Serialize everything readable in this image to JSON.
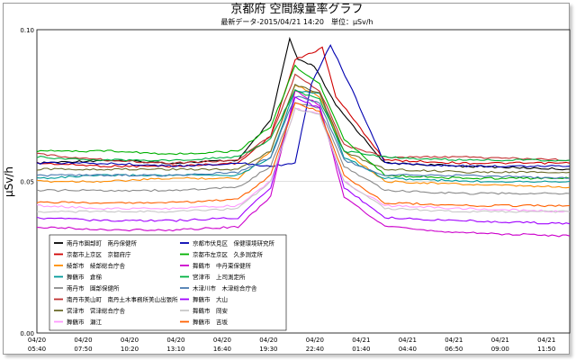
{
  "chart_data": {
    "type": "line",
    "title": "京都府 空間線量率グラフ",
    "subtitle": "最新データ-2015/04/21 14:20　単位：μSv/h",
    "xlabel": "",
    "ylabel": "μSv/h",
    "ylim": [
      0,
      0.1
    ],
    "y_ticks": [
      "0.00",
      "0.05",
      "0.10"
    ],
    "x_ticks": [
      {
        "date": "04/20",
        "time": "05:40"
      },
      {
        "date": "04/20",
        "time": "07:50"
      },
      {
        "date": "04/20",
        "time": "10:20"
      },
      {
        "date": "04/20",
        "time": "13:10"
      },
      {
        "date": "04/20",
        "time": "16:40"
      },
      {
        "date": "04/20",
        "time": "19:30"
      },
      {
        "date": "04/20",
        "time": "22:40"
      },
      {
        "date": "04/21",
        "time": "01:40"
      },
      {
        "date": "04/21",
        "time": "04:40"
      },
      {
        "date": "04/21",
        "time": "06:50"
      },
      {
        "date": "04/21",
        "time": "09:00"
      },
      {
        "date": "04/21",
        "time": "11:50"
      }
    ],
    "x_start": "2015-04-20 05:40",
    "x_end": "2015-04-21 14:20",
    "grid": "horizontal",
    "legend_placement": "bottom-left",
    "series": [
      {
        "name": "南丹市園部町　南丹保健所",
        "color": "#000000",
        "x": [
          "2015-04-20 05:40",
          "2015-04-20 10:00",
          "2015-04-20 14:00",
          "2015-04-20 18:00",
          "2015-04-20 20:00",
          "2015-04-20 21:10",
          "2015-04-20 21:40",
          "2015-04-20 22:40",
          "2015-04-21 00:00",
          "2015-04-21 03:00",
          "2015-04-21 08:00",
          "2015-04-21 14:20"
        ],
        "values": [
          0.056,
          0.057,
          0.056,
          0.057,
          0.07,
          0.097,
          0.09,
          0.088,
          0.075,
          0.056,
          0.055,
          0.054
        ]
      },
      {
        "name": "京都市上京区　京都府庁",
        "color": "#d00000",
        "x": [
          "2015-04-20 05:40",
          "2015-04-20 10:00",
          "2015-04-20 14:00",
          "2015-04-20 18:00",
          "2015-04-20 20:00",
          "2015-04-20 21:30",
          "2015-04-20 23:10",
          "2015-04-21 00:00",
          "2015-04-21 03:00",
          "2015-04-21 08:00",
          "2015-04-21 14:20"
        ],
        "values": [
          0.056,
          0.055,
          0.055,
          0.056,
          0.065,
          0.09,
          0.094,
          0.078,
          0.057,
          0.056,
          0.056
        ]
      },
      {
        "name": "綾部市　綾部総合庁舎",
        "color": "#ff8c00",
        "x": [
          "2015-04-20 05:40",
          "2015-04-20 10:00",
          "2015-04-20 14:00",
          "2015-04-20 18:00",
          "2015-04-20 20:00",
          "2015-04-20 21:30",
          "2015-04-20 23:00",
          "2015-04-21 00:30",
          "2015-04-21 03:00",
          "2015-04-21 08:00",
          "2015-04-21 14:20"
        ],
        "values": [
          0.05,
          0.05,
          0.051,
          0.051,
          0.06,
          0.082,
          0.078,
          0.06,
          0.05,
          0.049,
          0.048
        ]
      },
      {
        "name": "舞鶴市　倉梯",
        "color": "#009a9a",
        "x": [
          "2015-04-20 05:40",
          "2015-04-20 10:00",
          "2015-04-20 14:00",
          "2015-04-20 18:00",
          "2015-04-20 20:00",
          "2015-04-20 21:30",
          "2015-04-20 23:00",
          "2015-04-21 00:30",
          "2015-04-21 03:00",
          "2015-04-21 08:00",
          "2015-04-21 14:20"
        ],
        "values": [
          0.051,
          0.052,
          0.052,
          0.052,
          0.058,
          0.08,
          0.079,
          0.058,
          0.051,
          0.05,
          0.05
        ]
      },
      {
        "name": "南丹市　園部保健所",
        "color": "#8a8a8a",
        "x": [
          "2015-04-20 05:40",
          "2015-04-20 10:00",
          "2015-04-20 14:00",
          "2015-04-20 18:00",
          "2015-04-20 20:00",
          "2015-04-20 21:30",
          "2015-04-20 23:00",
          "2015-04-21 00:30",
          "2015-04-21 03:00",
          "2015-04-21 08:00",
          "2015-04-21 14:20"
        ],
        "values": [
          0.047,
          0.047,
          0.047,
          0.048,
          0.055,
          0.076,
          0.074,
          0.055,
          0.047,
          0.046,
          0.046
        ]
      },
      {
        "name": "南丹市美山町　南丹土木事務所美山出張所",
        "color": "#c03030",
        "x": [
          "2015-04-20 05:40",
          "2015-04-20 10:00",
          "2015-04-20 14:00",
          "2015-04-20 18:00",
          "2015-04-20 20:00",
          "2015-04-20 21:30",
          "2015-04-20 23:00",
          "2015-04-21 00:30",
          "2015-04-21 03:00",
          "2015-04-21 08:00",
          "2015-04-21 14:20"
        ],
        "values": [
          0.059,
          0.057,
          0.056,
          0.057,
          0.065,
          0.085,
          0.08,
          0.062,
          0.058,
          0.058,
          0.057
        ]
      },
      {
        "name": "宮津市　宮津総合庁舎",
        "color": "#6b6b2a",
        "x": [
          "2015-04-20 05:40",
          "2015-04-20 10:00",
          "2015-04-20 14:00",
          "2015-04-20 18:00",
          "2015-04-20 20:00",
          "2015-04-20 21:30",
          "2015-04-20 23:00",
          "2015-04-21 00:30",
          "2015-04-21 03:00",
          "2015-04-21 08:00",
          "2015-04-21 14:20"
        ],
        "values": [
          0.054,
          0.054,
          0.054,
          0.054,
          0.06,
          0.082,
          0.079,
          0.06,
          0.054,
          0.053,
          0.053
        ]
      },
      {
        "name": "舞鶴市　瀬江",
        "color": "#ff99ff",
        "x": [
          "2015-04-20 05:40",
          "2015-04-20 10:00",
          "2015-04-20 14:00",
          "2015-04-20 18:00",
          "2015-04-20 20:00",
          "2015-04-20 21:30",
          "2015-04-20 23:00",
          "2015-04-21 00:30",
          "2015-04-21 03:00",
          "2015-04-21 08:00",
          "2015-04-21 14:20"
        ],
        "values": [
          0.042,
          0.041,
          0.041,
          0.042,
          0.05,
          0.074,
          0.072,
          0.05,
          0.042,
          0.041,
          0.04
        ]
      },
      {
        "name": "京都市伏見区　保健環境研究所",
        "color": "#0000b0",
        "x": [
          "2015-04-20 05:40",
          "2015-04-20 10:00",
          "2015-04-20 14:00",
          "2015-04-20 18:00",
          "2015-04-20 20:00",
          "2015-04-20 21:30",
          "2015-04-20 22:30",
          "2015-04-20 23:40",
          "2015-04-21 01:00",
          "2015-04-21 03:00",
          "2015-04-21 08:00",
          "2015-04-21 14:20"
        ],
        "values": [
          0.056,
          0.056,
          0.055,
          0.056,
          0.055,
          0.056,
          0.082,
          0.095,
          0.08,
          0.056,
          0.055,
          0.055
        ]
      },
      {
        "name": "京都市左京区　久多測定所",
        "color": "#00b000",
        "x": [
          "2015-04-20 05:40",
          "2015-04-20 10:00",
          "2015-04-20 14:00",
          "2015-04-20 18:00",
          "2015-04-20 20:00",
          "2015-04-20 21:30",
          "2015-04-20 23:00",
          "2015-04-21 00:30",
          "2015-04-21 03:00",
          "2015-04-21 08:00",
          "2015-04-21 14:20"
        ],
        "values": [
          0.06,
          0.06,
          0.059,
          0.06,
          0.068,
          0.088,
          0.082,
          0.064,
          0.052,
          0.051,
          0.051
        ]
      },
      {
        "name": "舞鶴市　中丹東保健所",
        "color": "#cc00cc",
        "x": [
          "2015-04-20 05:40",
          "2015-04-20 10:00",
          "2015-04-20 14:00",
          "2015-04-20 18:00",
          "2015-04-20 20:00",
          "2015-04-20 21:30",
          "2015-04-20 23:00",
          "2015-04-21 00:30",
          "2015-04-21 03:00",
          "2015-04-21 08:00",
          "2015-04-21 14:20"
        ],
        "values": [
          0.035,
          0.034,
          0.034,
          0.035,
          0.045,
          0.08,
          0.075,
          0.045,
          0.035,
          0.033,
          0.032
        ]
      },
      {
        "name": "宮津市　上司測定所",
        "color": "#00b040",
        "x": [
          "2015-04-20 05:40",
          "2015-04-20 10:00",
          "2015-04-20 14:00",
          "2015-04-20 18:00",
          "2015-04-20 20:00",
          "2015-04-20 21:30",
          "2015-04-20 23:00",
          "2015-04-21 00:30",
          "2015-04-21 03:00",
          "2015-04-21 08:00",
          "2015-04-21 14:20"
        ],
        "values": [
          0.058,
          0.057,
          0.057,
          0.058,
          0.064,
          0.08,
          0.077,
          0.06,
          0.058,
          0.057,
          0.057
        ]
      },
      {
        "name": "木津川市　木津総合庁舎",
        "color": "#4a7ab0",
        "x": [
          "2015-04-20 05:40",
          "2015-04-20 10:00",
          "2015-04-20 14:00",
          "2015-04-20 18:00",
          "2015-04-20 20:00",
          "2015-04-20 21:30",
          "2015-04-20 23:00",
          "2015-04-21 00:30",
          "2015-04-21 03:00",
          "2015-04-21 08:00",
          "2015-04-21 14:20"
        ],
        "values": [
          0.052,
          0.052,
          0.052,
          0.053,
          0.058,
          0.078,
          0.076,
          0.057,
          0.052,
          0.052,
          0.051
        ]
      },
      {
        "name": "舞鶴市　大山",
        "color": "#a000ff",
        "x": [
          "2015-04-20 05:40",
          "2015-04-20 10:00",
          "2015-04-20 14:00",
          "2015-04-20 18:00",
          "2015-04-20 20:00",
          "2015-04-20 21:30",
          "2015-04-20 23:00",
          "2015-04-21 00:30",
          "2015-04-21 03:00",
          "2015-04-21 08:00",
          "2015-04-21 14:20"
        ],
        "values": [
          0.038,
          0.037,
          0.037,
          0.038,
          0.048,
          0.078,
          0.074,
          0.048,
          0.038,
          0.037,
          0.036
        ]
      },
      {
        "name": "舞鶴市　岡安",
        "color": "#c8c8c8",
        "x": [
          "2015-04-20 05:40",
          "2015-04-20 10:00",
          "2015-04-20 14:00",
          "2015-04-20 18:00",
          "2015-04-20 20:00",
          "2015-04-20 21:30",
          "2015-04-20 23:00",
          "2015-04-21 00:30",
          "2015-04-21 03:00",
          "2015-04-21 08:00",
          "2015-04-21 14:20"
        ],
        "values": [
          0.04,
          0.04,
          0.04,
          0.041,
          0.05,
          0.074,
          0.072,
          0.05,
          0.041,
          0.04,
          0.04
        ]
      },
      {
        "name": "舞鶴市　吉坂",
        "color": "#ff6000",
        "x": [
          "2015-04-20 05:40",
          "2015-04-20 10:00",
          "2015-04-20 14:00",
          "2015-04-20 18:00",
          "2015-04-20 20:00",
          "2015-04-20 21:30",
          "2015-04-20 23:00",
          "2015-04-21 00:30",
          "2015-04-21 03:00",
          "2015-04-21 08:00",
          "2015-04-21 14:20"
        ],
        "values": [
          0.043,
          0.043,
          0.043,
          0.044,
          0.052,
          0.076,
          0.073,
          0.052,
          0.043,
          0.042,
          0.042
        ]
      }
    ]
  }
}
